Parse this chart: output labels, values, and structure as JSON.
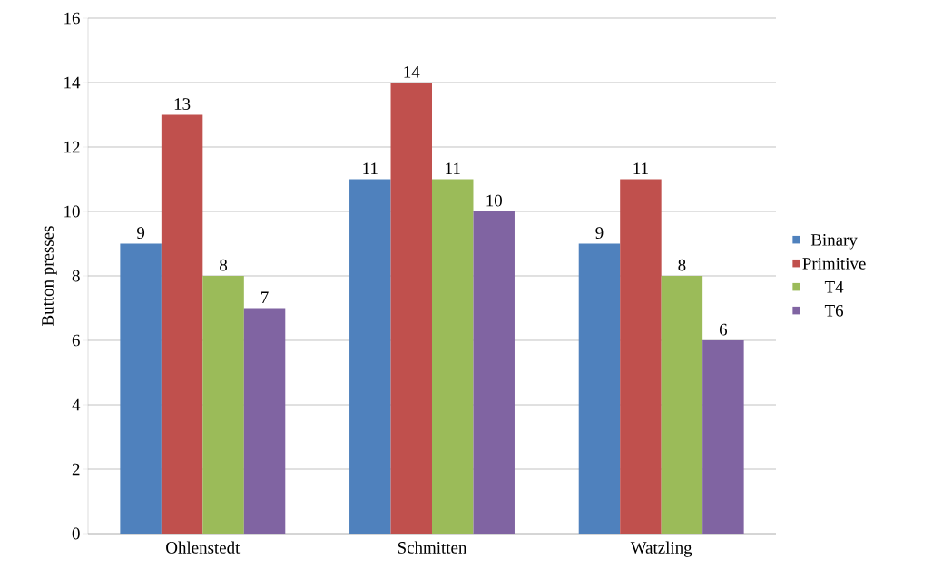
{
  "chart_data": {
    "type": "bar",
    "ylabel": "Button presses",
    "categories": [
      "Ohlenstedt",
      "Schmitten",
      "Watzling"
    ],
    "series": [
      {
        "name": "Binary",
        "color": "#4f81bd",
        "values": [
          9,
          11,
          9
        ]
      },
      {
        "name": "Primitive",
        "color": "#c0504d",
        "values": [
          13,
          14,
          11
        ]
      },
      {
        "name": "T4",
        "color": "#9bbb59",
        "values": [
          8,
          11,
          8
        ]
      },
      {
        "name": "T6",
        "color": "#8064a2",
        "values": [
          7,
          10,
          6
        ]
      }
    ],
    "ylim": [
      0,
      16
    ],
    "yticks": [
      0,
      2,
      4,
      6,
      8,
      10,
      12,
      14,
      16
    ],
    "grid": "y",
    "legend": "right",
    "data_labels": true
  }
}
